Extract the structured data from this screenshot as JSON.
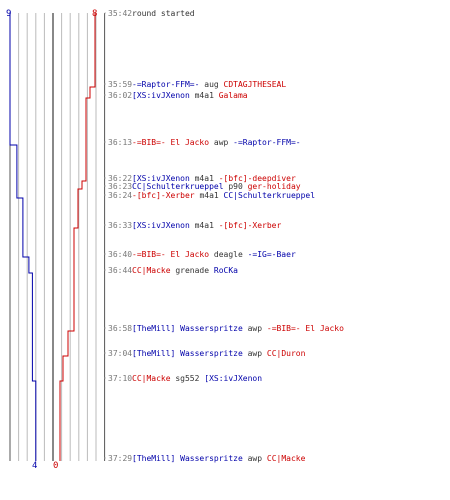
{
  "colors": {
    "team_blue": "#0000aa",
    "team_red": "#cc0000",
    "time_gray": "#777777",
    "neutral_text": "#333333",
    "grid": "#bbbbbb",
    "frame": "#555555"
  },
  "counts": {
    "blue_start": "9",
    "red_start": "8",
    "blue_end": "4",
    "red_end": "0"
  },
  "events": [
    {
      "time": "35:42",
      "parts": [
        {
          "t": "round started",
          "c": "neutral"
        }
      ]
    },
    {
      "time": "35:59",
      "parts": [
        {
          "t": "-=Raptor-FFM=-",
          "c": "blue"
        },
        {
          "t": " aug ",
          "c": "neutral"
        },
        {
          "t": "CDTAGJTHESEAL",
          "c": "red"
        }
      ]
    },
    {
      "time": "36:02",
      "parts": [
        {
          "t": "[XS:ivJXenon",
          "c": "blue"
        },
        {
          "t": " m4a1 ",
          "c": "neutral"
        },
        {
          "t": "Galama",
          "c": "red"
        }
      ]
    },
    {
      "time": "36:13",
      "parts": [
        {
          "t": "-=BIB=- El Jacko",
          "c": "red"
        },
        {
          "t": " awp ",
          "c": "neutral"
        },
        {
          "t": "-=Raptor-FFM=-",
          "c": "blue"
        }
      ]
    },
    {
      "time": "36:22",
      "parts": [
        {
          "t": "[XS:ivJXenon",
          "c": "blue"
        },
        {
          "t": " m4a1 ",
          "c": "neutral"
        },
        {
          "t": "-[bfc]-deepdiver",
          "c": "red"
        }
      ]
    },
    {
      "time": "36:23",
      "parts": [
        {
          "t": "CC|Schulterkrueppel",
          "c": "blue"
        },
        {
          "t": " p90 ",
          "c": "neutral"
        },
        {
          "t": "ger-holiday",
          "c": "red"
        }
      ]
    },
    {
      "time": "36:24",
      "parts": [
        {
          "t": "-[bfc]-Xerber",
          "c": "red"
        },
        {
          "t": " m4a1 ",
          "c": "neutral"
        },
        {
          "t": "CC|Schulterkrueppel",
          "c": "blue"
        }
      ]
    },
    {
      "time": "36:33",
      "parts": [
        {
          "t": "[XS:ivJXenon",
          "c": "blue"
        },
        {
          "t": " m4a1 ",
          "c": "neutral"
        },
        {
          "t": "-[bfc]-Xerber",
          "c": "red"
        }
      ]
    },
    {
      "time": "36:40",
      "parts": [
        {
          "t": "-=BIB=- El Jacko",
          "c": "red"
        },
        {
          "t": " deagle ",
          "c": "neutral"
        },
        {
          "t": "-=IG=-Baer",
          "c": "blue"
        }
      ]
    },
    {
      "time": "36:44",
      "parts": [
        {
          "t": "CC|Macke",
          "c": "red"
        },
        {
          "t": " grenade ",
          "c": "neutral"
        },
        {
          "t": "RoCKa",
          "c": "blue"
        }
      ]
    },
    {
      "time": "36:58",
      "parts": [
        {
          "t": "[TheMill] Wasserspritze",
          "c": "blue"
        },
        {
          "t": " awp ",
          "c": "neutral"
        },
        {
          "t": "-=BIB=- El Jacko",
          "c": "red"
        }
      ]
    },
    {
      "time": "37:04",
      "parts": [
        {
          "t": "[TheMill] Wasserspritze",
          "c": "blue"
        },
        {
          "t": " awp ",
          "c": "neutral"
        },
        {
          "t": "CC|Duron",
          "c": "red"
        }
      ]
    },
    {
      "time": "37:10",
      "parts": [
        {
          "t": "CC|Macke",
          "c": "red"
        },
        {
          "t": " sg552 ",
          "c": "neutral"
        },
        {
          "t": "[XS:ivJXenon",
          "c": "blue"
        }
      ]
    },
    {
      "time": "37:29",
      "parts": [
        {
          "t": "[TheMill] Wasserspritze",
          "c": "blue"
        },
        {
          "t": " awp ",
          "c": "neutral"
        },
        {
          "t": "CC|Macke",
          "c": "red"
        }
      ]
    }
  ]
}
